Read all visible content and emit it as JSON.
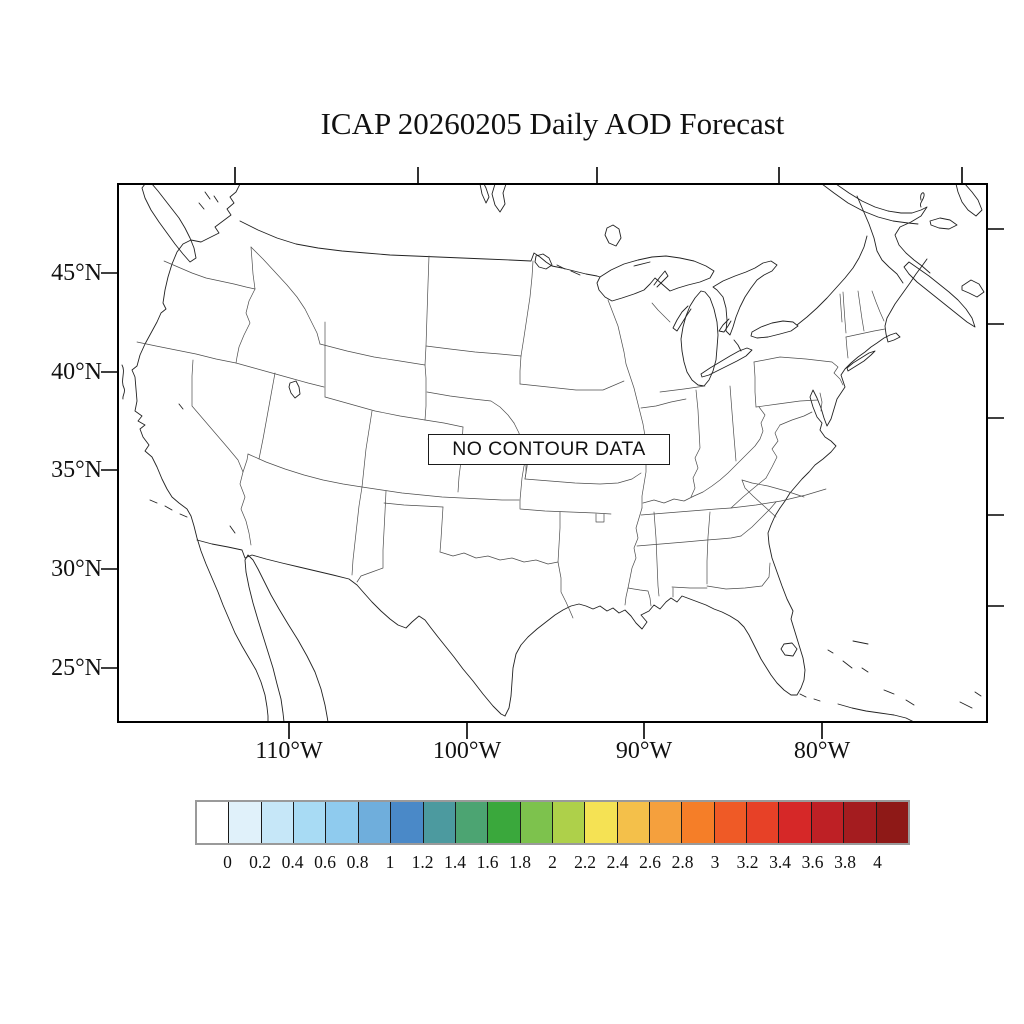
{
  "title": "ICAP 20260205 Daily AOD Forecast",
  "map": {
    "no_data_label": "NO CONTOUR DATA"
  },
  "axes": {
    "lat_labels": [
      "45°N",
      "40°N",
      "35°N",
      "30°N",
      "25°N"
    ],
    "lon_labels": [
      "110°W",
      "100°W",
      "90°W",
      "80°W"
    ]
  },
  "colorbar": {
    "labels": [
      "0",
      "0.2",
      "0.4",
      "0.6",
      "0.8",
      "1",
      "1.2",
      "1.4",
      "1.6",
      "1.8",
      "2",
      "2.2",
      "2.4",
      "2.6",
      "2.8",
      "3",
      "3.2",
      "3.4",
      "3.6",
      "3.8",
      "4"
    ],
    "colors": [
      "#FFFFFF",
      "#E0F1FA",
      "#C6E7F8",
      "#A8DBF4",
      "#8FCBEE",
      "#6FAEDC",
      "#4A89C8",
      "#4C9A9F",
      "#4CA472",
      "#3AA83C",
      "#7DC24D",
      "#AED04A",
      "#F5E254",
      "#F4C04A",
      "#F5A03D",
      "#F57E28",
      "#EF5A26",
      "#E74127",
      "#D62828",
      "#BE2025",
      "#A41C1F",
      "#8E1917"
    ]
  }
}
